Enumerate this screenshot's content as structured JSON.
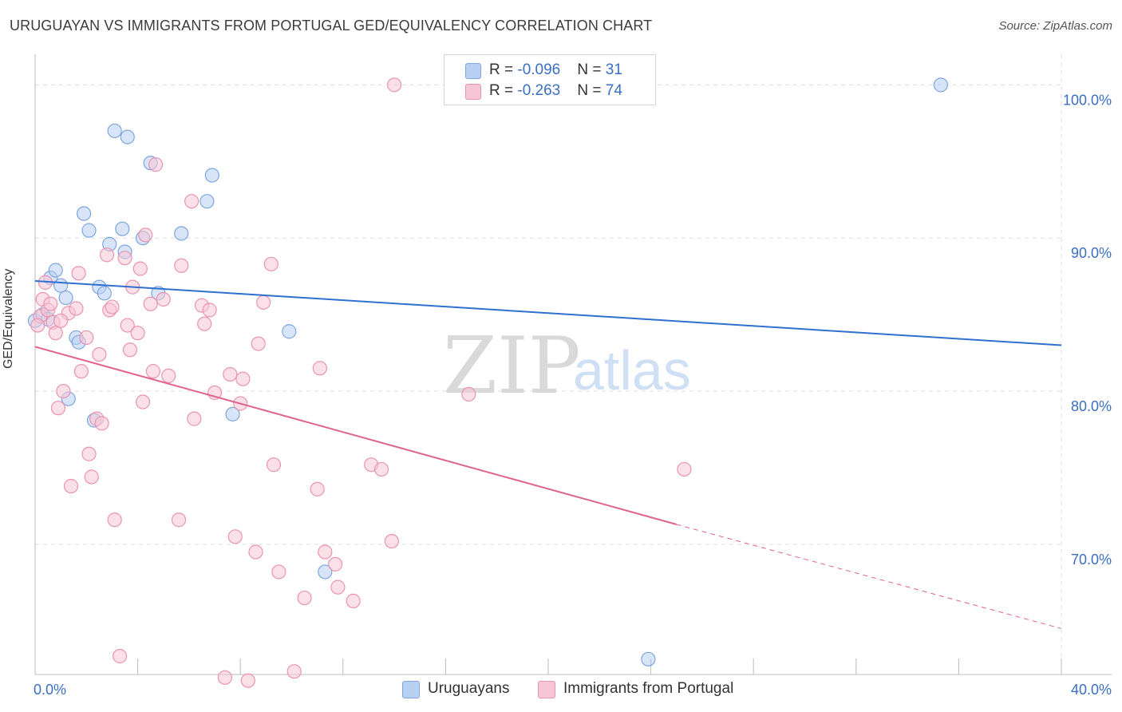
{
  "header": {
    "title": "URUGUAYAN VS IMMIGRANTS FROM PORTUGAL GED/EQUIVALENCY CORRELATION CHART",
    "source": "Source: ZipAtlas.com"
  },
  "watermark": {
    "zip": "ZIP",
    "atlas": "atlas"
  },
  "colors": {
    "blue_fill": "#b8d0f2",
    "blue_stroke": "#7ea6de",
    "blue_line": "#2f6fd0",
    "pink_fill": "#f7c6d6",
    "pink_stroke": "#e994b2",
    "pink_line": "#e0638f",
    "tick_label": "#3a6fc4",
    "grid": "#dddddd"
  },
  "legend": {
    "rows": [
      {
        "r_label": "R = ",
        "r_value": "-0.096",
        "n_label": "N = ",
        "n_value": "31",
        "color": "blue"
      },
      {
        "r_label": "R = ",
        "r_value": "-0.263",
        "n_label": "N = ",
        "n_value": "74",
        "color": "pink"
      }
    ]
  },
  "bottom_legend": {
    "series1": "Uruguayans",
    "series2": "Immigrants from Portugal"
  },
  "chart_data": {
    "type": "scatter",
    "title": "URUGUAYAN VS IMMIGRANTS FROM PORTUGAL GED/EQUIVALENCY CORRELATION CHART",
    "xlabel": "",
    "ylabel": "GED/Equivalency",
    "xlim": [
      0,
      40
    ],
    "ylim": [
      61.5,
      102
    ],
    "x_tick_labels": [
      {
        "value": 0,
        "label": "0.0%"
      },
      {
        "value": 40,
        "label": "40.0%"
      }
    ],
    "y_tick_labels": [
      {
        "value": 100,
        "label": "100.0%"
      },
      {
        "value": 90,
        "label": "90.0%"
      },
      {
        "value": 80,
        "label": "80.0%"
      },
      {
        "value": 70,
        "label": "70.0%"
      }
    ],
    "grid": "horizontal dashed",
    "series": [
      {
        "name": "Uruguayans",
        "color": "blue",
        "points": [
          [
            0.0,
            84.6
          ],
          [
            0.3,
            85.0
          ],
          [
            0.5,
            84.7
          ],
          [
            0.6,
            87.4
          ],
          [
            0.8,
            87.9
          ],
          [
            1.0,
            86.9
          ],
          [
            1.2,
            86.1
          ],
          [
            1.6,
            83.5
          ],
          [
            1.7,
            83.2
          ],
          [
            1.9,
            91.6
          ],
          [
            2.1,
            90.5
          ],
          [
            2.3,
            78.1
          ],
          [
            2.5,
            86.8
          ],
          [
            2.7,
            86.4
          ],
          [
            2.9,
            89.6
          ],
          [
            3.1,
            97.0
          ],
          [
            3.4,
            90.6
          ],
          [
            3.5,
            89.1
          ],
          [
            3.6,
            96.6
          ],
          [
            4.2,
            90.0
          ],
          [
            4.5,
            94.9
          ],
          [
            4.8,
            86.4
          ],
          [
            5.7,
            90.3
          ],
          [
            6.7,
            92.4
          ],
          [
            6.9,
            94.1
          ],
          [
            7.7,
            78.5
          ],
          [
            9.9,
            83.9
          ],
          [
            11.3,
            68.2
          ],
          [
            23.9,
            62.5
          ],
          [
            35.3,
            100.0
          ],
          [
            1.3,
            79.5
          ]
        ]
      },
      {
        "name": "Immigrants from Portugal",
        "color": "pink",
        "points": [
          [
            0.2,
            84.9
          ],
          [
            0.3,
            86.0
          ],
          [
            0.4,
            87.1
          ],
          [
            0.5,
            85.3
          ],
          [
            0.6,
            85.7
          ],
          [
            0.7,
            84.5
          ],
          [
            0.8,
            83.8
          ],
          [
            0.9,
            78.9
          ],
          [
            1.1,
            80.0
          ],
          [
            1.3,
            85.1
          ],
          [
            1.4,
            73.8
          ],
          [
            1.6,
            85.4
          ],
          [
            1.7,
            87.7
          ],
          [
            1.8,
            81.3
          ],
          [
            2.0,
            83.5
          ],
          [
            2.1,
            75.9
          ],
          [
            2.2,
            74.4
          ],
          [
            2.4,
            78.2
          ],
          [
            2.5,
            82.4
          ],
          [
            2.6,
            77.9
          ],
          [
            2.8,
            88.9
          ],
          [
            2.9,
            85.3
          ],
          [
            3.0,
            85.5
          ],
          [
            3.1,
            71.6
          ],
          [
            3.3,
            62.7
          ],
          [
            3.5,
            88.7
          ],
          [
            3.6,
            84.3
          ],
          [
            3.7,
            82.7
          ],
          [
            3.8,
            86.8
          ],
          [
            4.0,
            83.8
          ],
          [
            4.1,
            88.0
          ],
          [
            4.2,
            79.3
          ],
          [
            4.3,
            90.2
          ],
          [
            4.5,
            85.7
          ],
          [
            4.6,
            81.3
          ],
          [
            4.7,
            94.8
          ],
          [
            5.0,
            86.0
          ],
          [
            5.2,
            81.0
          ],
          [
            5.6,
            71.6
          ],
          [
            5.7,
            88.2
          ],
          [
            6.1,
            92.4
          ],
          [
            6.2,
            78.2
          ],
          [
            6.5,
            85.6
          ],
          [
            6.6,
            84.4
          ],
          [
            6.8,
            85.3
          ],
          [
            7.0,
            79.9
          ],
          [
            7.4,
            61.3
          ],
          [
            7.6,
            81.1
          ],
          [
            7.8,
            70.5
          ],
          [
            8.0,
            79.2
          ],
          [
            8.1,
            80.8
          ],
          [
            8.3,
            61.1
          ],
          [
            8.6,
            69.5
          ],
          [
            8.7,
            83.1
          ],
          [
            8.9,
            85.8
          ],
          [
            9.2,
            88.3
          ],
          [
            9.3,
            75.2
          ],
          [
            9.5,
            68.2
          ],
          [
            10.1,
            61.7
          ],
          [
            10.5,
            66.5
          ],
          [
            11.0,
            73.6
          ],
          [
            11.1,
            81.5
          ],
          [
            11.3,
            69.5
          ],
          [
            11.7,
            68.7
          ],
          [
            11.8,
            67.2
          ],
          [
            12.4,
            66.3
          ],
          [
            13.1,
            75.2
          ],
          [
            13.5,
            74.9
          ],
          [
            13.9,
            70.2
          ],
          [
            16.9,
            79.8
          ],
          [
            25.3,
            74.9
          ],
          [
            14.0,
            100.0
          ],
          [
            1.0,
            84.6
          ],
          [
            0.1,
            84.3
          ]
        ]
      }
    ],
    "trend_lines": [
      {
        "series": "Uruguayans",
        "x_start": 0,
        "y_start": 87.2,
        "x_end": 40,
        "y_end": 83.0,
        "style": "solid"
      },
      {
        "series": "Immigrants from Portugal",
        "x_start": 0,
        "y_start": 82.9,
        "x_end": 25.0,
        "y_end": 71.3,
        "style": "solid"
      },
      {
        "series": "Immigrants from Portugal",
        "x_start": 25.0,
        "y_start": 71.3,
        "x_end": 40,
        "y_end": 64.5,
        "style": "dashed"
      }
    ]
  }
}
